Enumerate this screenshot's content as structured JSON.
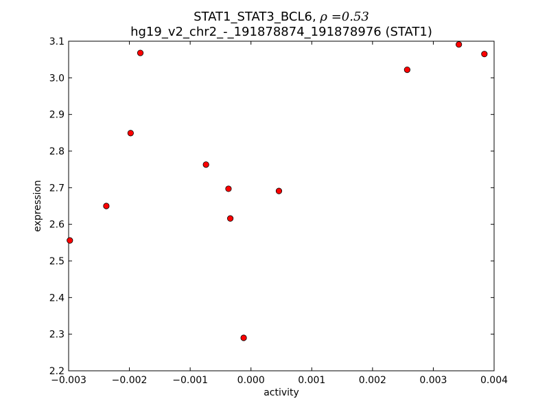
{
  "chart_data": {
    "type": "scatter",
    "title_line1_prefix": "STAT1_STAT3_BCL6, ",
    "title_line1_rho_symbol": "ρ",
    "title_line1_rho_value": " =0.53",
    "title_line2": "hg19_v2_chr2_-_191878874_191878976 (STAT1)",
    "xlabel": "activity",
    "ylabel": "expression",
    "xlim": [
      -0.003,
      0.004
    ],
    "ylim": [
      2.2,
      3.1
    ],
    "xticks": [
      -0.003,
      -0.002,
      -0.001,
      0.0,
      0.001,
      0.002,
      0.003,
      0.004
    ],
    "xtick_labels": [
      "−0.003",
      "−0.002",
      "−0.001",
      "0.000",
      "0.001",
      "0.002",
      "0.003",
      "0.004"
    ],
    "yticks": [
      2.2,
      2.3,
      2.4,
      2.5,
      2.6,
      2.7,
      2.8,
      2.9,
      3.0,
      3.1
    ],
    "ytick_labels": [
      "2.2",
      "2.3",
      "2.4",
      "2.5",
      "2.6",
      "2.7",
      "2.8",
      "2.9",
      "3.0",
      "3.1"
    ],
    "grid": false,
    "marker_color": "#ff0000",
    "points": [
      {
        "x": -0.00298,
        "y": 2.556
      },
      {
        "x": -0.00238,
        "y": 2.65
      },
      {
        "x": -0.00198,
        "y": 2.849
      },
      {
        "x": -0.00182,
        "y": 3.068
      },
      {
        "x": -0.00074,
        "y": 2.763
      },
      {
        "x": -0.00037,
        "y": 2.697
      },
      {
        "x": -0.00034,
        "y": 2.616
      },
      {
        "x": -0.00012,
        "y": 2.29
      },
      {
        "x": 0.00046,
        "y": 2.691
      },
      {
        "x": 0.00257,
        "y": 3.022
      },
      {
        "x": 0.00342,
        "y": 3.091
      },
      {
        "x": 0.00384,
        "y": 3.065
      }
    ]
  }
}
